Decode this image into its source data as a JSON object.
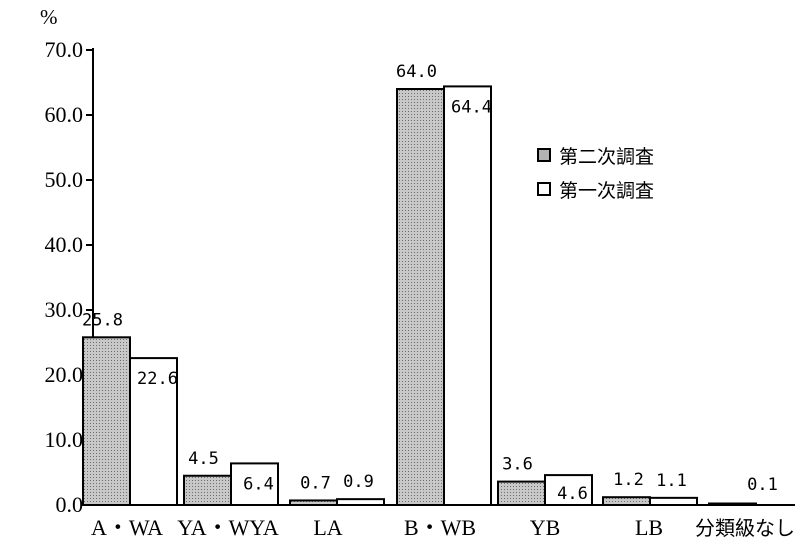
{
  "chart_data": {
    "type": "bar",
    "unit_label": "%",
    "categories": [
      "A・WA",
      "YA・WYA",
      "LA",
      "B・WB",
      "YB",
      "LB",
      "分類級なし"
    ],
    "series": [
      {
        "name": "第二次調査",
        "values": [
          25.8,
          4.5,
          0.7,
          64.0,
          3.6,
          1.2,
          0.1
        ],
        "color": "#b3b3b3"
      },
      {
        "name": "第一次調査",
        "values": [
          22.6,
          6.4,
          0.9,
          64.4,
          4.6,
          1.1,
          null
        ],
        "color": "#ffffff"
      }
    ],
    "ylim": [
      0,
      70
    ],
    "yticks": [
      "0.0",
      "10.0",
      "20.0",
      "30.0",
      "40.0",
      "50.0",
      "60.0",
      "70.0"
    ],
    "legend_position": "right",
    "grid": false
  }
}
